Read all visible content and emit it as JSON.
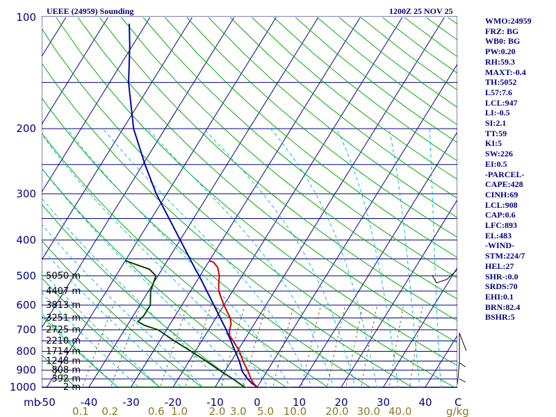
{
  "title_left": "UEEE (24959) Sounding",
  "title_right": "1200Z 25 NOV 25",
  "indices": [
    "WMO:24959",
    "FRZ: BG",
    "WB0: BG",
    "PW:0.20",
    "RH:59.3",
    "MAXT:-0.4",
    "TH:5052",
    "L57:7.6",
    "LCL:947",
    "LI:-0.5",
    "SI:2.1",
    "TT:59",
    "KI:5",
    "SW:226",
    "EI:0.5",
    "-PARCEL-",
    "CAPE:428",
    "CINH:69",
    "LCL:908",
    "CAP:0.6",
    "LFC:893",
    "EL:483",
    "-WIND-",
    "STM:224/7",
    "HEL:27",
    "SHR-:0.0",
    "SRDS:70",
    "EHI:0.1",
    "BRN:82.4",
    "BSHR:5"
  ],
  "colors": {
    "isobar": "#000080",
    "isotherm": "#000080",
    "dry_adiabat": "#00aa00",
    "moist_adiabat": "#00bcd4",
    "mixing_ratio": "#666633",
    "parcel": "#0000aa",
    "temperature": "#cc0000",
    "dewpoint": "#004400",
    "label": "#000080",
    "mr_label": "#8b7a20"
  },
  "chart_data": {
    "type": "skew-t",
    "pressure_ticks": [
      100,
      200,
      300,
      400,
      500,
      600,
      700,
      800,
      900,
      1000
    ],
    "pressure_unit_label": "mb",
    "temperature_ticks": [
      -50,
      -40,
      -30,
      -20,
      -10,
      0,
      10,
      20,
      30,
      40
    ],
    "temperature_tick_labels": [
      "-50",
      "-40",
      "-30",
      "-20",
      "-10",
      "0",
      "10",
      "20",
      "30",
      "40"
    ],
    "temperature_unit_label": "C",
    "mixing_ratio_labels": [
      "0.1",
      "0.2",
      "0.6",
      "1.0",
      "2.0",
      "3.0",
      "5.0",
      "10.0",
      "20.0",
      "30.0",
      "40.0"
    ],
    "mixing_ratio_label_temp": [
      -42,
      -35,
      -24,
      -18.5,
      -9.5,
      -4.5,
      2,
      9,
      19,
      26.5,
      34
    ],
    "mixing_ratio_unit_label": "g/kg",
    "height_labels": [
      {
        "p": 500,
        "text": "5050 m"
      },
      {
        "p": 550,
        "text": "4407 m"
      },
      {
        "p": 600,
        "text": "3813 m"
      },
      {
        "p": 650,
        "text": "3251 m"
      },
      {
        "p": 700,
        "text": "2725 m"
      },
      {
        "p": 750,
        "text": "2210 m"
      },
      {
        "p": 800,
        "text": "1714 m"
      },
      {
        "p": 850,
        "text": "1248 m"
      },
      {
        "p": 900,
        "text": "808 m"
      },
      {
        "p": 950,
        "text": "392 m"
      },
      {
        "p": 1000,
        "text": "2 m"
      }
    ],
    "temperature": [
      {
        "p": 1000,
        "t": 0.0
      },
      {
        "p": 975,
        "t": -1.5
      },
      {
        "p": 950,
        "t": -2.7
      },
      {
        "p": 925,
        "t": -3.7
      },
      {
        "p": 900,
        "t": -4.8
      },
      {
        "p": 875,
        "t": -6.0
      },
      {
        "p": 850,
        "t": -7.2
      },
      {
        "p": 800,
        "t": -9.5
      },
      {
        "p": 750,
        "t": -12.5
      },
      {
        "p": 725,
        "t": -14.2
      },
      {
        "p": 700,
        "t": -15.0
      },
      {
        "p": 675,
        "t": -15.5
      },
      {
        "p": 650,
        "t": -16.6
      },
      {
        "p": 600,
        "t": -20.0
      },
      {
        "p": 550,
        "t": -23.3
      },
      {
        "p": 525,
        "t": -24.4
      },
      {
        "p": 500,
        "t": -25.4
      },
      {
        "p": 475,
        "t": -27.0
      },
      {
        "p": 460,
        "t": -28.7
      },
      {
        "p": 455,
        "t": -30.0
      }
    ],
    "dewpoint": [
      {
        "p": 1000,
        "t": -3.0
      },
      {
        "p": 950,
        "t": -7.0
      },
      {
        "p": 900,
        "t": -11.5
      },
      {
        "p": 850,
        "t": -16.0
      },
      {
        "p": 800,
        "t": -21.0
      },
      {
        "p": 750,
        "t": -26.5
      },
      {
        "p": 700,
        "t": -32.0
      },
      {
        "p": 680,
        "t": -36.0
      },
      {
        "p": 665,
        "t": -38.0
      },
      {
        "p": 640,
        "t": -37.5
      },
      {
        "p": 600,
        "t": -37.5
      },
      {
        "p": 550,
        "t": -39.5
      },
      {
        "p": 500,
        "t": -40.5
      },
      {
        "p": 480,
        "t": -43.0
      },
      {
        "p": 455,
        "t": -50.0
      }
    ],
    "surface_dewpoint_line": [
      {
        "p": 1000,
        "t": -33.0
      },
      {
        "p": 1000,
        "t": -3.0
      }
    ],
    "parcel": [
      {
        "p": 1000,
        "t": 0.0
      },
      {
        "p": 975,
        "t": -1.9
      },
      {
        "p": 950,
        "t": -3.5
      },
      {
        "p": 908,
        "t": -5.8
      },
      {
        "p": 850,
        "t": -8.1
      },
      {
        "p": 800,
        "t": -10.5
      },
      {
        "p": 700,
        "t": -15.8
      },
      {
        "p": 600,
        "t": -22.4
      },
      {
        "p": 500,
        "t": -30.2
      },
      {
        "p": 483,
        "t": -31.8
      },
      {
        "p": 400,
        "t": -40.0
      },
      {
        "p": 300,
        "t": -52.5
      },
      {
        "p": 250,
        "t": -59.5
      },
      {
        "p": 200,
        "t": -67.5
      },
      {
        "p": 150,
        "t": -75.5
      },
      {
        "p": 120,
        "t": -80.5
      },
      {
        "p": 104,
        "t": -84.0
      }
    ]
  }
}
